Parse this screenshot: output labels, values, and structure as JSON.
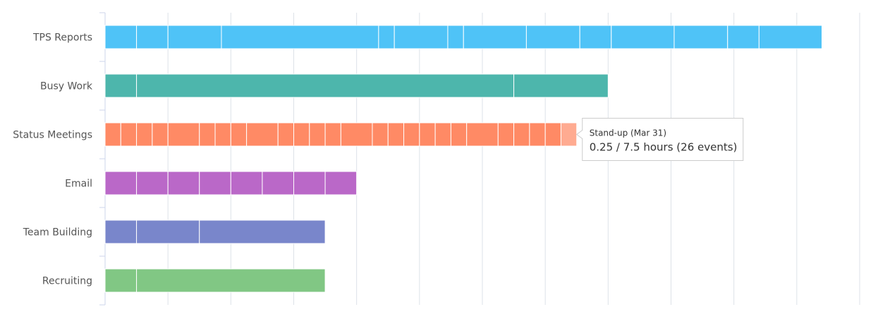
{
  "chart_data": {
    "type": "bar",
    "orientation": "horizontal",
    "stacked": true,
    "unit": "hours",
    "categories": [
      "TPS Reports",
      "Busy Work",
      "Status Meetings",
      "Email",
      "Team Building",
      "Recruiting"
    ],
    "xlim": [
      0,
      12
    ],
    "grid": true,
    "series_colors": {
      "TPS Reports": "#4fc3f7",
      "Busy Work": "#4db6ac",
      "Status Meetings": "#ff8a65",
      "Email": "#ba68c8",
      "Team Building": "#7986cb",
      "Recruiting": "#81c784"
    },
    "highlight_color": "#ffab91",
    "bars": [
      {
        "category": "TPS Reports",
        "segments": [
          0.5,
          0.5,
          0.85,
          2.5,
          0.25,
          0.85,
          0.25,
          1.0,
          0.85,
          0.5,
          1.0,
          0.85,
          0.5,
          1.0
        ]
      },
      {
        "category": "Busy Work",
        "segments": [
          0.5,
          6.0,
          1.5
        ]
      },
      {
        "category": "Status Meetings",
        "segments": [
          0.25,
          0.25,
          0.25,
          0.25,
          0.5,
          0.25,
          0.25,
          0.25,
          0.5,
          0.25,
          0.25,
          0.25,
          0.25,
          0.5,
          0.25,
          0.25,
          0.25,
          0.25,
          0.25,
          0.25,
          0.5,
          0.25,
          0.25,
          0.25,
          0.25,
          0.25
        ]
      },
      {
        "category": "Email",
        "segments": [
          0.5,
          0.5,
          0.5,
          0.5,
          0.5,
          0.5,
          0.5,
          0.5
        ]
      },
      {
        "category": "Team Building",
        "segments": [
          0.5,
          1.0,
          2.0
        ]
      },
      {
        "category": "Recruiting",
        "segments": [
          0.5,
          3.0
        ]
      }
    ],
    "tooltip": {
      "category": "Status Meetings",
      "segment_index": 25,
      "title": "Stand-up (Mar 31)",
      "body": "0.25 / 7.5 hours (26 events)"
    }
  }
}
